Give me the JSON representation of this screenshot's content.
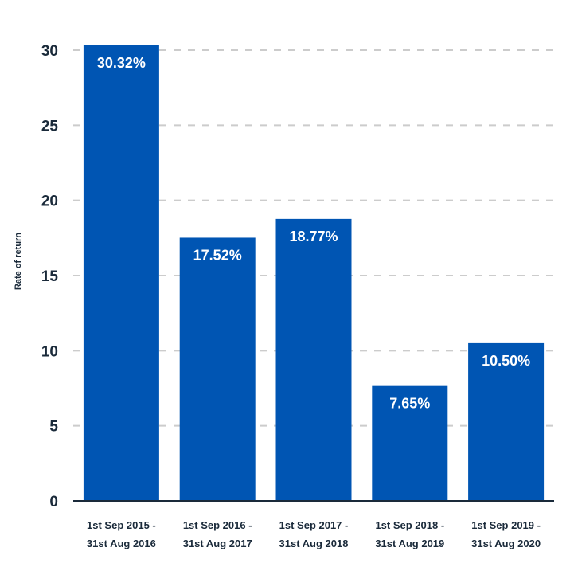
{
  "chart_data": {
    "type": "bar",
    "categories": [
      [
        "1st Sep 2015 -",
        "31st Aug 2016"
      ],
      [
        "1st Sep 2016 -",
        "31st Aug 2017"
      ],
      [
        "1st Sep 2017 -",
        "31st Aug 2018"
      ],
      [
        "1st Sep 2018 -",
        "31st Aug 2019"
      ],
      [
        "1st Sep 2019 -",
        "31st Aug 2020"
      ]
    ],
    "values": [
      30.32,
      17.52,
      18.77,
      7.65,
      10.5
    ],
    "data_labels": [
      "30.32%",
      "17.52%",
      "18.77%",
      "7.65%",
      "10.50%"
    ],
    "title": "",
    "xlabel": "",
    "ylabel": "Rate of return",
    "ylim": [
      0,
      30
    ],
    "yticks": [
      0,
      5,
      10,
      15,
      20,
      25,
      30
    ],
    "grid": true,
    "bar_color": "#0055b3",
    "grid_color": "#cccccc",
    "axis_color": "#1a2a3a"
  }
}
